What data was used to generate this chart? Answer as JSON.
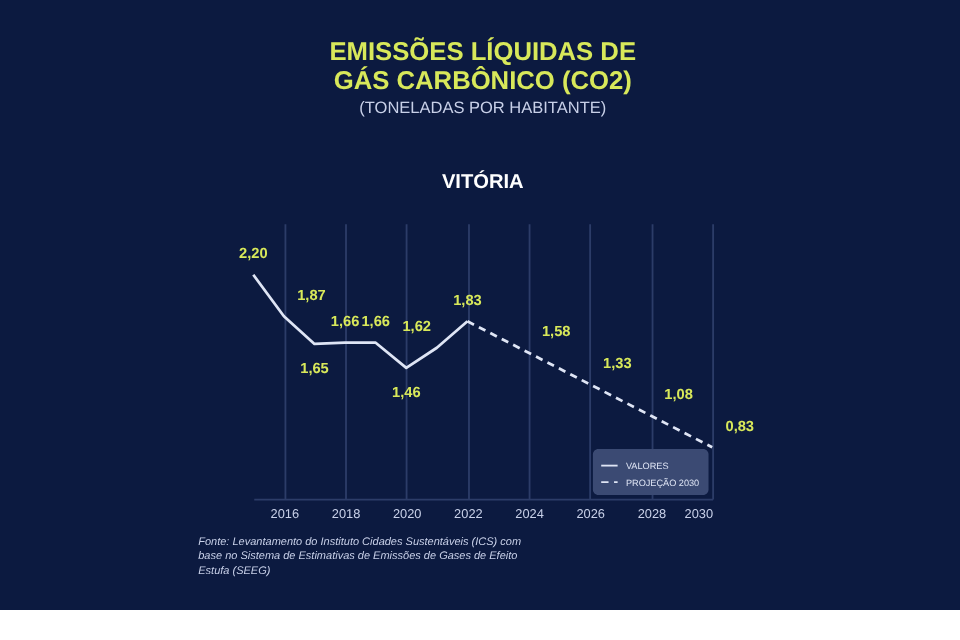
{
  "chart_data": {
    "type": "line",
    "title": "EMISSÕES LÍQUIDAS DE GÁS CARBÔNICO (CO2)",
    "subtitle": "(TONELADAS POR HABITANTE)",
    "annotations": [
      "VITÓRIA",
      "Fonte: Levantamento do Instituto Cidades Sustentáveis (ICS) com base no Sistema de Estimativas de Emissões de Gases de Efeito Estufa (SEEG)"
    ],
    "xlim": [
      2015,
      2030
    ],
    "xticks": [
      2016,
      2018,
      2020,
      2022,
      2024,
      2026,
      2028,
      2030
    ],
    "grid": "x",
    "legend": "bottom right",
    "marker": "none",
    "series": [
      {
        "name": "VALORES",
        "color": "#dfe5f5",
        "line_style": "solid",
        "x": [
          2015,
          2016,
          2017,
          2018,
          2019,
          2020,
          2021,
          2022
        ],
        "values": [
          2.2,
          1.87,
          1.65,
          1.66,
          1.66,
          1.46,
          1.62,
          1.83
        ],
        "value_labels": [
          "2,20",
          "1,87",
          "1,65",
          "1,66",
          "1,66",
          "1,46",
          "1,62",
          "1,83"
        ]
      },
      {
        "name": "PROJEÇÃO 2030",
        "color": "#dfe5f5",
        "line_style": "dashed",
        "x": [
          2022,
          2024,
          2026,
          2028,
          2030
        ],
        "values": [
          1.83,
          1.58,
          1.33,
          1.08,
          0.83
        ],
        "value_labels": [
          null,
          "1,58",
          "1,33",
          "1,08",
          "0,83"
        ]
      }
    ]
  }
}
